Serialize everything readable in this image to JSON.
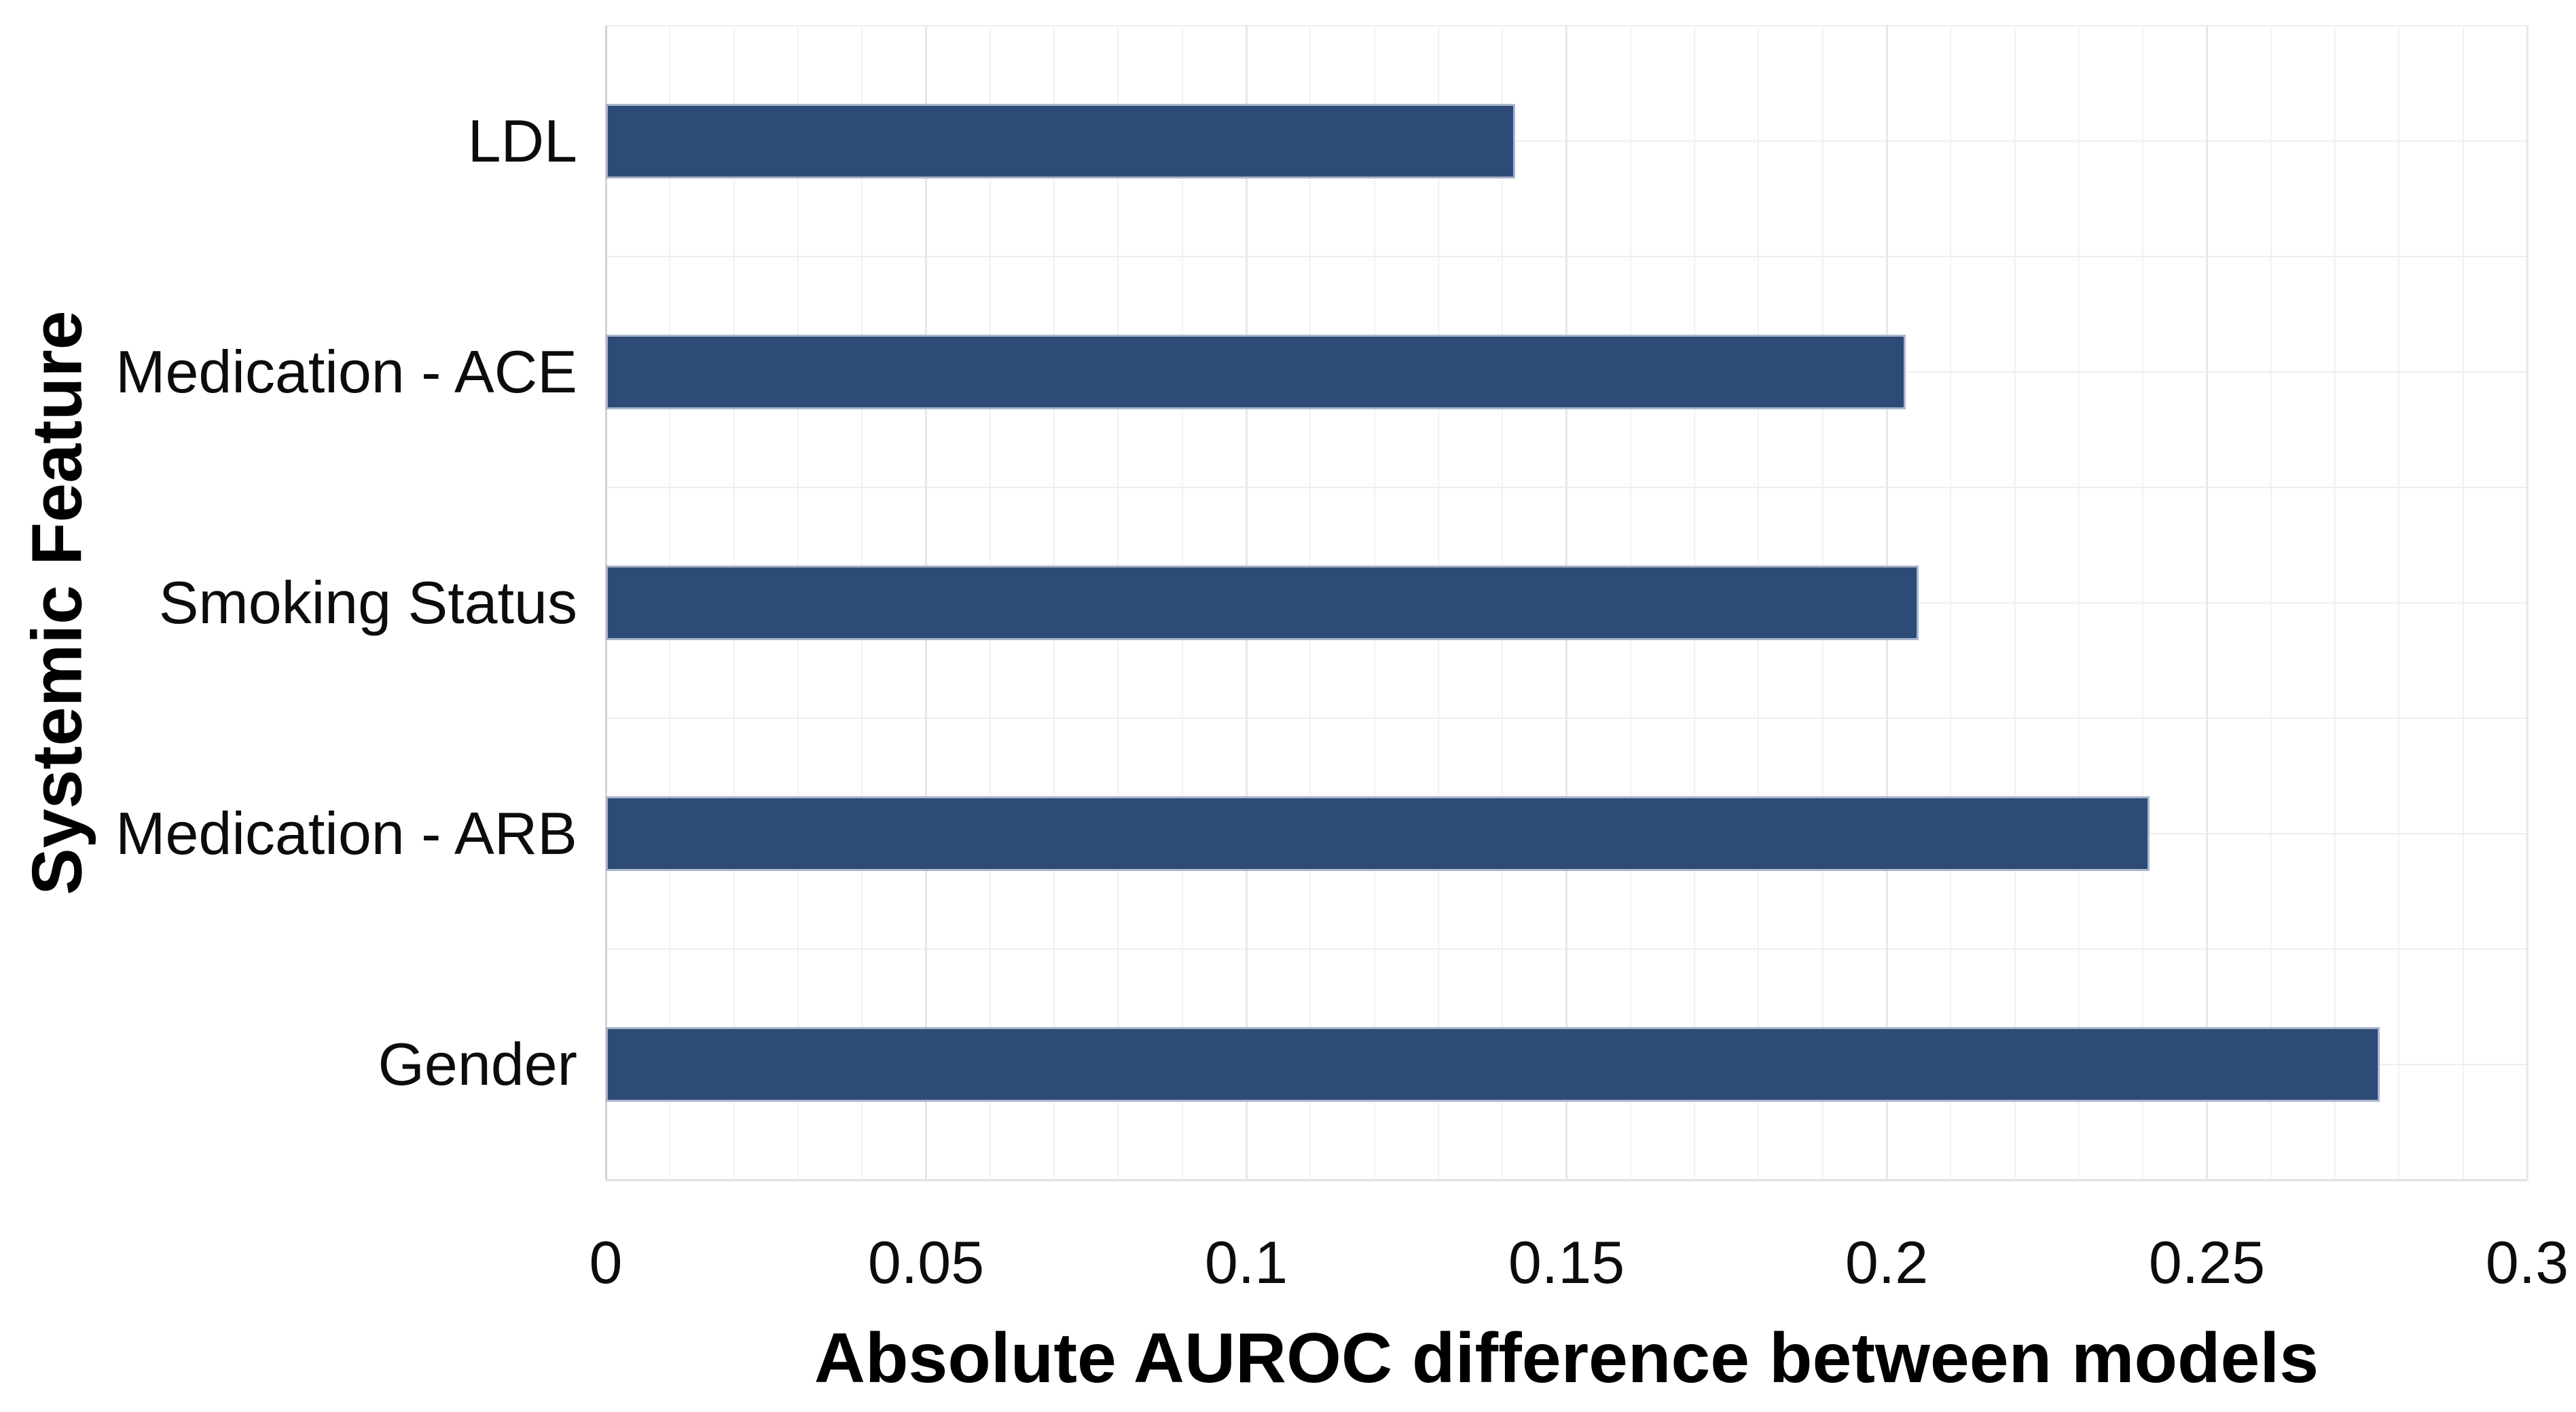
{
  "chart_data": {
    "type": "bar",
    "orientation": "horizontal",
    "title": "",
    "xlabel": "Absolute AUROC difference between models",
    "ylabel": "Systemic Feature",
    "categories": [
      "LDL",
      "Medication - ACE",
      "Smoking Status",
      "Medication - ARB",
      "Gender"
    ],
    "values": [
      0.142,
      0.203,
      0.205,
      0.241,
      0.277
    ],
    "xlim": [
      0,
      0.3
    ],
    "x_ticks": [
      {
        "value": 0,
        "label": "0"
      },
      {
        "value": 0.05,
        "label": "0.05"
      },
      {
        "value": 0.1,
        "label": "0.1"
      },
      {
        "value": 0.15,
        "label": "0.15"
      },
      {
        "value": 0.2,
        "label": "0.2"
      },
      {
        "value": 0.25,
        "label": "0.25"
      },
      {
        "value": 0.3,
        "label": "0.3"
      }
    ],
    "minor_grid_step": 0.01,
    "major_grid_step": 0.05,
    "grid": true,
    "legend": false,
    "colors": {
      "bar_fill": "#2D4B76",
      "bar_border": "#AAB5CA",
      "minor_grid": "#f2f2f2",
      "major_grid": "#e7e7e7",
      "axis_line": "#d3d3d3",
      "row_grid": "#eeeeee",
      "background": "#ffffff",
      "text": "#000000"
    }
  }
}
